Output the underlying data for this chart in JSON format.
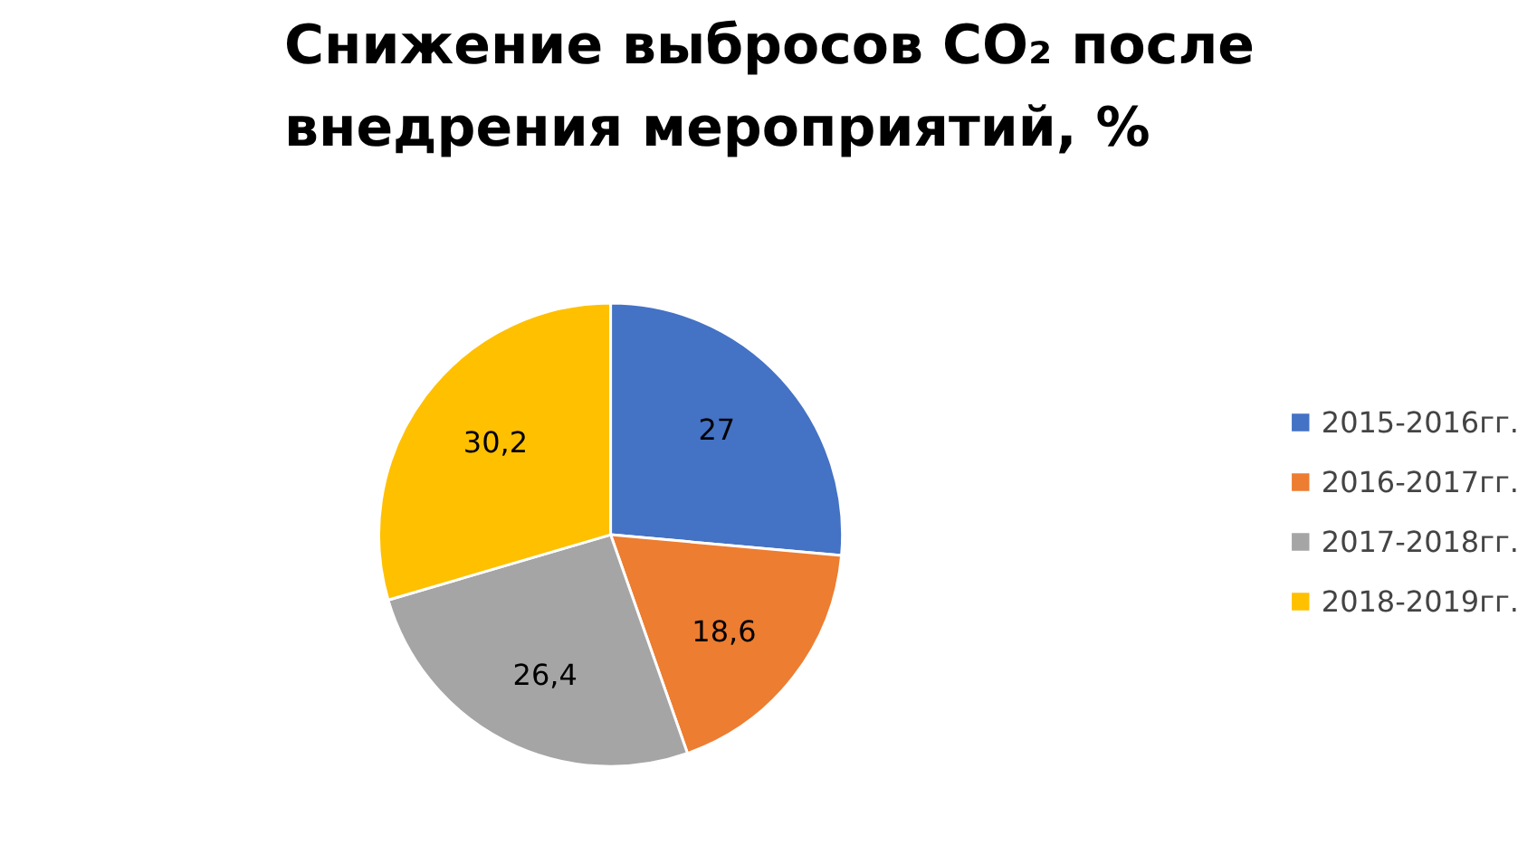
{
  "chart_data": {
    "type": "pie",
    "title": "Снижение выбросов CO₂ после внедрения мероприятий, %",
    "categories": [
      "2015-2016гг.",
      "2016-2017гг.",
      "2017-2018гг.",
      "2018-2019гг."
    ],
    "values": [
      27,
      18.6,
      26.4,
      30.2
    ],
    "value_labels": [
      "27",
      "18,6",
      "26,4",
      "30,2"
    ],
    "colors": [
      "#4472c4",
      "#ed7d31",
      "#a5a5a5",
      "#ffc000"
    ],
    "legend": "right"
  }
}
